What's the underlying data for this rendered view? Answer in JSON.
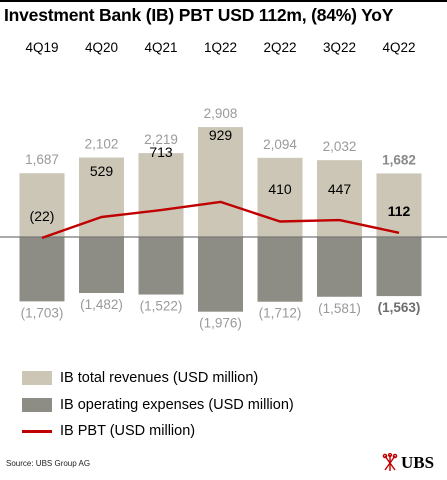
{
  "title": "Investment Bank (IB) PBT USD 112m, (84%) YoY",
  "colors": {
    "revenue": "#cbc6b6",
    "expenses": "#8e8d85",
    "pbt": "#c00000",
    "zero_line": "#777777",
    "text_light": "#9a9a9a"
  },
  "chart_data": {
    "type": "bar",
    "categories": [
      "4Q19",
      "4Q20",
      "4Q21",
      "1Q22",
      "2Q22",
      "3Q22",
      "4Q22"
    ],
    "series": [
      {
        "name": "IB total revenues (USD million)",
        "kind": "bar",
        "values": [
          1687,
          2102,
          2219,
          2908,
          2094,
          2032,
          1682
        ],
        "labels": [
          "1,687",
          "2,102",
          "2,219",
          "2,908",
          "2,094",
          "2,032",
          "1,682"
        ]
      },
      {
        "name": "IB operating expenses (USD million)",
        "kind": "bar",
        "values": [
          -1703,
          -1482,
          -1522,
          -1976,
          -1712,
          -1581,
          -1563
        ],
        "labels": [
          "(1,703)",
          "(1,482)",
          "(1,522)",
          "(1,976)",
          "(1,712)",
          "(1,581)",
          "(1,563)"
        ]
      },
      {
        "name": "IB PBT (USD million)",
        "kind": "line",
        "values": [
          -22,
          529,
          713,
          929,
          410,
          447,
          112
        ],
        "labels": [
          "(22)",
          "529",
          "713",
          "929",
          "410",
          "447",
          "112"
        ]
      }
    ],
    "ylim": [
      -2000,
      3000
    ],
    "grid": false,
    "legend_position": "bottom-left",
    "highlight_category": "4Q22"
  },
  "legend": [
    {
      "label": "IB total revenues (USD million)",
      "swatch": "revenue"
    },
    {
      "label": "IB operating expenses (USD million)",
      "swatch": "expenses"
    },
    {
      "label": "IB PBT (USD million)",
      "swatch": "pbt"
    }
  ],
  "source": "Source: UBS Group AG",
  "logo": {
    "text": "UBS",
    "icon": "ubs-keys-icon"
  }
}
